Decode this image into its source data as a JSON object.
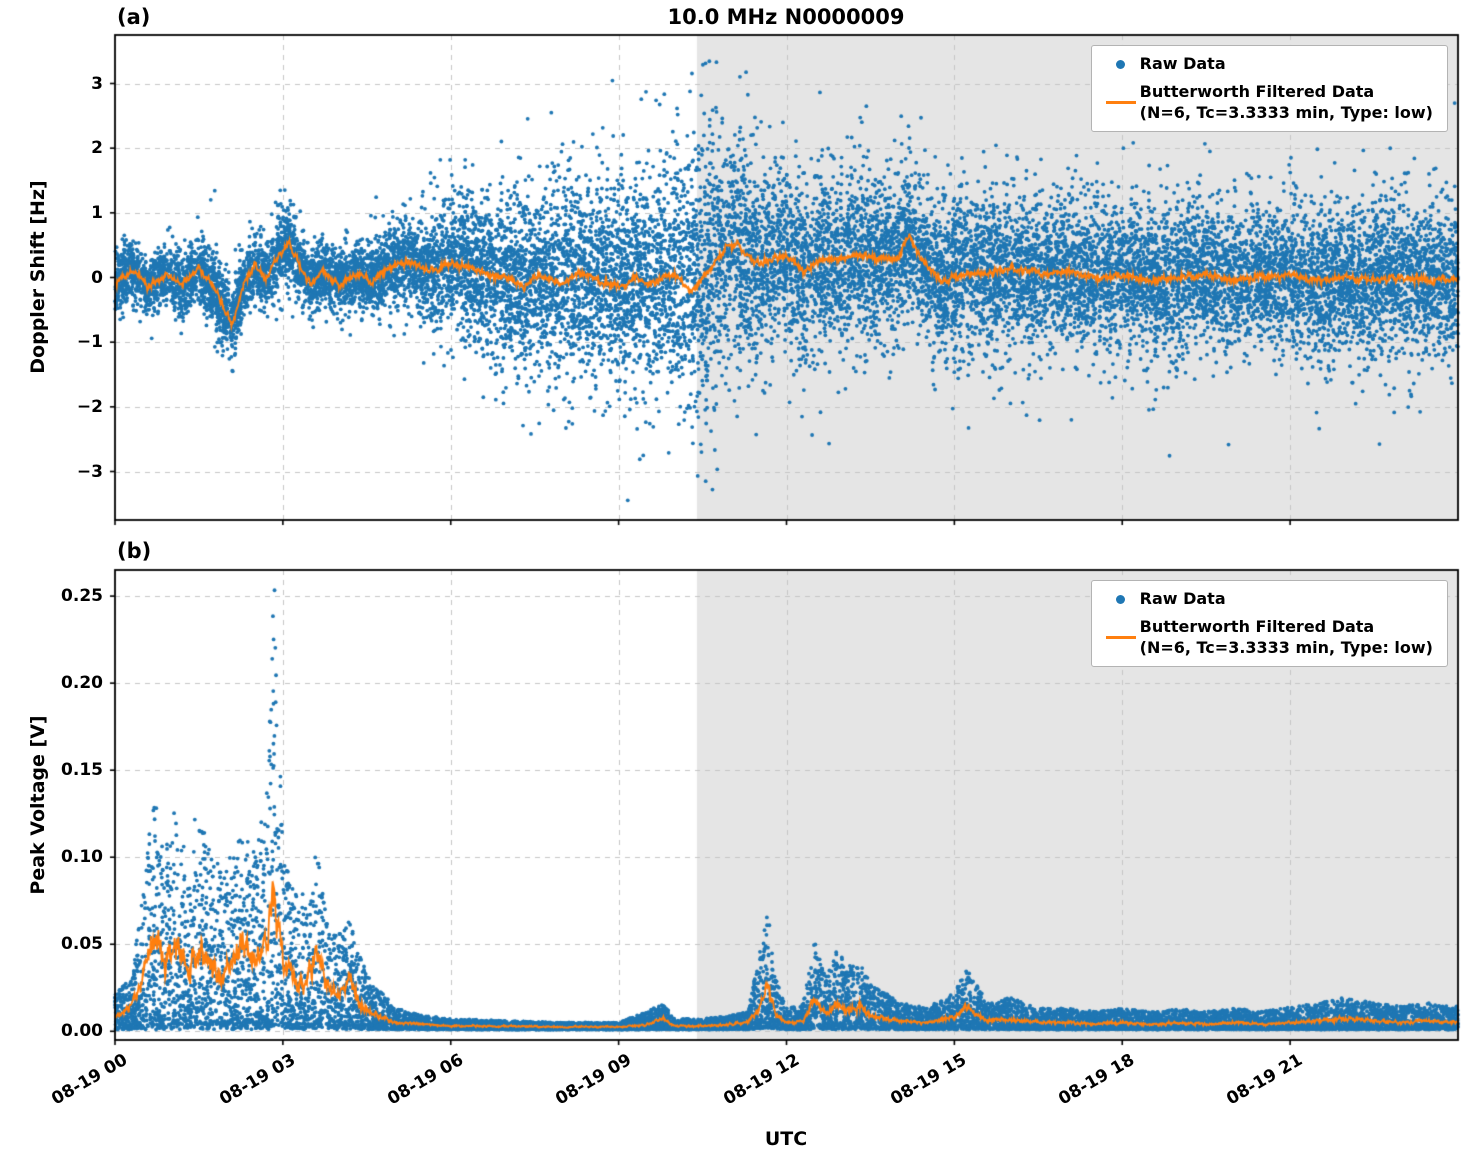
{
  "figure": {
    "title": "10.0 MHz N0000009",
    "xlabel": "UTC",
    "panels": [
      {
        "label": "(a)",
        "ylabel": "Doppler Shift [Hz]"
      },
      {
        "label": "(b)",
        "ylabel": "Peak Voltage [V]"
      }
    ],
    "legend": {
      "raw_label": "Raw Data",
      "filtered_label_line1": "Butterworth Filtered Data",
      "filtered_label_line2": "(N=6, Tc=3.3333 min, Type: low)"
    },
    "colors": {
      "raw": "#1f77b4",
      "filtered": "#ff7f0e",
      "shade": "#e5e5e5",
      "grid": "#c6c6c6",
      "spine": "#000000"
    }
  },
  "chart_data": [
    {
      "type": "scatter",
      "panel": "a",
      "title": "10.0 MHz N0000009",
      "xlabel": "UTC",
      "ylabel": "Doppler Shift [Hz]",
      "xlim_hours": [
        0,
        24
      ],
      "x_tick_hours": [
        0,
        3,
        6,
        9,
        12,
        15,
        18,
        21
      ],
      "x_tick_labels": [
        "08-19 00",
        "08-19 03",
        "08-19 06",
        "08-19 09",
        "08-19 12",
        "08-19 15",
        "08-19 18",
        "08-19 21"
      ],
      "ylim": [
        -3.75,
        3.75
      ],
      "y_tick_values": [
        -3,
        -2,
        -1,
        0,
        1,
        2,
        3
      ],
      "y_tick_labels": [
        "−3",
        "−2",
        "−1",
        "0",
        "1",
        "2",
        "3"
      ],
      "grid": true,
      "legend_position": "upper right",
      "shaded_region_hours": [
        10.4,
        24
      ],
      "series": [
        {
          "name": "Raw Data",
          "plot": "scatter",
          "color": "#1f77b4",
          "n_points": 18000,
          "envelope_t": [
            0,
            0.5,
            1,
            1.5,
            2,
            2.5,
            3,
            3.5,
            4,
            4.5,
            5,
            5.5,
            6,
            6.5,
            7,
            7.5,
            8,
            8.5,
            9,
            9.5,
            10,
            10.3,
            10.6,
            11,
            11.3,
            11.6,
            12,
            12.5,
            13,
            13.5,
            14,
            14.5,
            15,
            15.5,
            16,
            17,
            18,
            19,
            20,
            21,
            22,
            23,
            24
          ],
          "envelope_v": [
            0.6,
            0.55,
            0.6,
            0.65,
            0.8,
            0.65,
            0.75,
            0.65,
            0.6,
            0.65,
            0.8,
            1.0,
            1.3,
            1.5,
            1.7,
            1.8,
            1.95,
            1.95,
            2.05,
            2.15,
            2.35,
            2.6,
            2.7,
            2.1,
            2.3,
            1.9,
            1.6,
            1.7,
            1.8,
            1.6,
            1.55,
            1.6,
            1.7,
            1.5,
            1.45,
            1.45,
            1.35,
            1.45,
            1.35,
            1.35,
            1.45,
            1.45,
            1.5
          ]
        },
        {
          "name": "Butterworth Filtered Data (N=6, Tc=3.3333 min, Type: low)",
          "plot": "line",
          "color": "#ff7f0e",
          "t": [
            0,
            0.3,
            0.6,
            0.9,
            1.2,
            1.5,
            1.8,
            2.0,
            2.1,
            2.3,
            2.5,
            2.7,
            2.9,
            3.1,
            3.3,
            3.5,
            3.7,
            4.0,
            4.3,
            4.6,
            5.0,
            5.3,
            5.6,
            6.0,
            6.3,
            6.6,
            7.0,
            7.3,
            7.6,
            8.0,
            8.3,
            8.6,
            9.0,
            9.3,
            9.6,
            10.0,
            10.3,
            10.6,
            10.9,
            11.1,
            11.3,
            11.5,
            11.8,
            12.0,
            12.3,
            12.6,
            13.0,
            13.3,
            13.6,
            14.0,
            14.2,
            14.4,
            14.6,
            14.8,
            15.0,
            15.3,
            15.6,
            16.0,
            16.3,
            16.6,
            17.0,
            17.5,
            18.0,
            18.5,
            19.0,
            19.5,
            20.0,
            20.5,
            21.0,
            21.5,
            22.0,
            22.5,
            23.0,
            23.5,
            24.0
          ],
          "v": [
            -0.1,
            0.1,
            -0.15,
            0.05,
            -0.1,
            0.15,
            -0.2,
            -0.55,
            -0.75,
            -0.1,
            0.2,
            0.0,
            0.3,
            0.55,
            0.2,
            -0.15,
            0.1,
            -0.1,
            0.05,
            -0.05,
            0.2,
            0.25,
            0.1,
            0.2,
            0.15,
            0.05,
            0.0,
            -0.15,
            0.05,
            -0.1,
            0.1,
            -0.05,
            -0.15,
            0.0,
            -0.1,
            0.05,
            -0.2,
            0.1,
            0.45,
            0.55,
            0.35,
            0.2,
            0.3,
            0.35,
            0.1,
            0.25,
            0.3,
            0.35,
            0.3,
            0.3,
            0.65,
            0.3,
            0.1,
            -0.1,
            0.0,
            0.1,
            0.05,
            0.15,
            0.1,
            0.05,
            0.1,
            0.0,
            0.05,
            -0.05,
            0.0,
            0.05,
            -0.05,
            0.0,
            0.05,
            -0.05,
            0.0,
            -0.05,
            0.0,
            -0.05,
            0.0
          ]
        }
      ]
    },
    {
      "type": "scatter",
      "panel": "b",
      "xlabel": "UTC",
      "ylabel": "Peak Voltage [V]",
      "xlim_hours": [
        0,
        24
      ],
      "x_tick_hours": [
        0,
        3,
        6,
        9,
        12,
        15,
        18,
        21
      ],
      "x_tick_labels": [
        "08-19 00",
        "08-19 03",
        "08-19 06",
        "08-19 09",
        "08-19 12",
        "08-19 15",
        "08-19 18",
        "08-19 21"
      ],
      "ylim": [
        -0.005,
        0.265
      ],
      "y_tick_values": [
        0.0,
        0.05,
        0.1,
        0.15,
        0.2,
        0.25
      ],
      "y_tick_labels": [
        "0.00",
        "0.05",
        "0.10",
        "0.15",
        "0.20",
        "0.25"
      ],
      "grid": true,
      "legend_position": "upper right",
      "shaded_region_hours": [
        10.4,
        24
      ],
      "series": [
        {
          "name": "Raw Data",
          "plot": "scatter",
          "color": "#1f77b4",
          "n_points": 13000,
          "envelope_t": [
            0,
            0.3,
            0.5,
            0.7,
            0.9,
            1.1,
            1.3,
            1.5,
            1.7,
            1.9,
            2.1,
            2.3,
            2.5,
            2.7,
            2.85,
            3.0,
            3.2,
            3.4,
            3.6,
            3.8,
            4.0,
            4.2,
            4.4,
            4.6,
            4.8,
            5.0,
            5.5,
            6.0,
            7.0,
            8.0,
            9.0,
            9.5,
            9.8,
            10.0,
            10.5,
            11.0,
            11.3,
            11.5,
            11.65,
            11.8,
            12.0,
            12.3,
            12.5,
            12.7,
            12.9,
            13.1,
            13.3,
            13.5,
            13.8,
            14.0,
            14.5,
            15.0,
            15.2,
            15.4,
            15.6,
            16.0,
            16.5,
            17.0,
            17.5,
            18.0,
            18.5,
            19.0,
            19.5,
            20.0,
            20.5,
            21.0,
            21.5,
            22.0,
            22.5,
            23.0,
            23.5,
            24.0
          ],
          "envelope_v": [
            0.02,
            0.03,
            0.08,
            0.135,
            0.1,
            0.13,
            0.09,
            0.12,
            0.1,
            0.09,
            0.1,
            0.11,
            0.1,
            0.13,
            0.25,
            0.1,
            0.08,
            0.07,
            0.105,
            0.06,
            0.055,
            0.065,
            0.04,
            0.025,
            0.02,
            0.012,
            0.008,
            0.006,
            0.005,
            0.004,
            0.004,
            0.01,
            0.015,
            0.006,
            0.006,
            0.008,
            0.01,
            0.04,
            0.065,
            0.03,
            0.012,
            0.015,
            0.05,
            0.03,
            0.045,
            0.035,
            0.04,
            0.025,
            0.02,
            0.015,
            0.012,
            0.02,
            0.035,
            0.025,
            0.015,
            0.018,
            0.012,
            0.012,
            0.01,
            0.012,
            0.01,
            0.012,
            0.01,
            0.012,
            0.01,
            0.013,
            0.015,
            0.018,
            0.015,
            0.013,
            0.015,
            0.013
          ]
        },
        {
          "name": "Butterworth Filtered Data (N=6, Tc=3.3333 min, Type: low)",
          "plot": "line",
          "color": "#ff7f0e",
          "t": [
            0,
            0.3,
            0.5,
            0.7,
            0.9,
            1.1,
            1.3,
            1.5,
            1.7,
            1.9,
            2.1,
            2.3,
            2.5,
            2.7,
            2.85,
            3.0,
            3.2,
            3.4,
            3.6,
            3.8,
            4.0,
            4.2,
            4.4,
            4.6,
            4.8,
            5.0,
            5.5,
            6.0,
            7.0,
            8.0,
            9.0,
            9.5,
            9.8,
            10.0,
            10.5,
            11.0,
            11.3,
            11.5,
            11.65,
            11.8,
            12.0,
            12.3,
            12.5,
            12.7,
            12.9,
            13.1,
            13.3,
            13.5,
            13.8,
            14.0,
            14.5,
            15.0,
            15.2,
            15.4,
            15.6,
            16.0,
            16.5,
            17.0,
            17.5,
            18.0,
            18.5,
            19.0,
            19.5,
            20.0,
            20.5,
            21.0,
            21.5,
            22.0,
            22.5,
            23.0,
            23.5,
            24.0
          ],
          "v": [
            0.008,
            0.015,
            0.03,
            0.055,
            0.04,
            0.05,
            0.035,
            0.045,
            0.04,
            0.03,
            0.04,
            0.05,
            0.04,
            0.05,
            0.08,
            0.04,
            0.03,
            0.025,
            0.045,
            0.025,
            0.02,
            0.03,
            0.015,
            0.01,
            0.008,
            0.005,
            0.004,
            0.003,
            0.003,
            0.0025,
            0.0025,
            0.004,
            0.007,
            0.003,
            0.003,
            0.004,
            0.005,
            0.012,
            0.028,
            0.01,
            0.005,
            0.006,
            0.018,
            0.01,
            0.016,
            0.012,
            0.014,
            0.009,
            0.007,
            0.006,
            0.005,
            0.008,
            0.014,
            0.009,
            0.006,
            0.007,
            0.005,
            0.005,
            0.004,
            0.005,
            0.004,
            0.005,
            0.004,
            0.005,
            0.004,
            0.005,
            0.006,
            0.007,
            0.006,
            0.005,
            0.006,
            0.005
          ]
        }
      ]
    }
  ]
}
